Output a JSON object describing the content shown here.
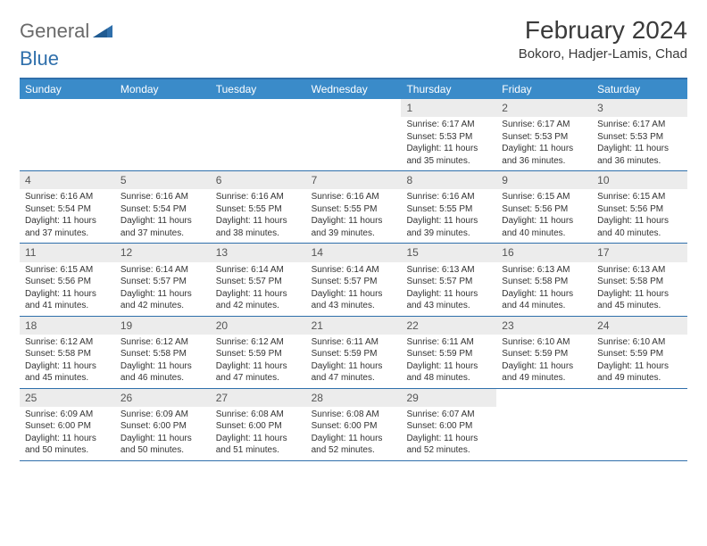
{
  "logo": {
    "part1": "General",
    "part2": "Blue"
  },
  "title": "February 2024",
  "subtitle": "Bokoro, Hadjer-Lamis, Chad",
  "colors": {
    "header_bg": "#3a8bc9",
    "border": "#2f6fab",
    "daynum_bg": "#ececec",
    "text": "#333333",
    "title_text": "#3a3a3a"
  },
  "weekdays": [
    "Sunday",
    "Monday",
    "Tuesday",
    "Wednesday",
    "Thursday",
    "Friday",
    "Saturday"
  ],
  "weeks": [
    [
      {
        "n": "",
        "sr": "",
        "ss": "",
        "dl": ""
      },
      {
        "n": "",
        "sr": "",
        "ss": "",
        "dl": ""
      },
      {
        "n": "",
        "sr": "",
        "ss": "",
        "dl": ""
      },
      {
        "n": "",
        "sr": "",
        "ss": "",
        "dl": ""
      },
      {
        "n": "1",
        "sr": "Sunrise: 6:17 AM",
        "ss": "Sunset: 5:53 PM",
        "dl": "Daylight: 11 hours and 35 minutes."
      },
      {
        "n": "2",
        "sr": "Sunrise: 6:17 AM",
        "ss": "Sunset: 5:53 PM",
        "dl": "Daylight: 11 hours and 36 minutes."
      },
      {
        "n": "3",
        "sr": "Sunrise: 6:17 AM",
        "ss": "Sunset: 5:53 PM",
        "dl": "Daylight: 11 hours and 36 minutes."
      }
    ],
    [
      {
        "n": "4",
        "sr": "Sunrise: 6:16 AM",
        "ss": "Sunset: 5:54 PM",
        "dl": "Daylight: 11 hours and 37 minutes."
      },
      {
        "n": "5",
        "sr": "Sunrise: 6:16 AM",
        "ss": "Sunset: 5:54 PM",
        "dl": "Daylight: 11 hours and 37 minutes."
      },
      {
        "n": "6",
        "sr": "Sunrise: 6:16 AM",
        "ss": "Sunset: 5:55 PM",
        "dl": "Daylight: 11 hours and 38 minutes."
      },
      {
        "n": "7",
        "sr": "Sunrise: 6:16 AM",
        "ss": "Sunset: 5:55 PM",
        "dl": "Daylight: 11 hours and 39 minutes."
      },
      {
        "n": "8",
        "sr": "Sunrise: 6:16 AM",
        "ss": "Sunset: 5:55 PM",
        "dl": "Daylight: 11 hours and 39 minutes."
      },
      {
        "n": "9",
        "sr": "Sunrise: 6:15 AM",
        "ss": "Sunset: 5:56 PM",
        "dl": "Daylight: 11 hours and 40 minutes."
      },
      {
        "n": "10",
        "sr": "Sunrise: 6:15 AM",
        "ss": "Sunset: 5:56 PM",
        "dl": "Daylight: 11 hours and 40 minutes."
      }
    ],
    [
      {
        "n": "11",
        "sr": "Sunrise: 6:15 AM",
        "ss": "Sunset: 5:56 PM",
        "dl": "Daylight: 11 hours and 41 minutes."
      },
      {
        "n": "12",
        "sr": "Sunrise: 6:14 AM",
        "ss": "Sunset: 5:57 PM",
        "dl": "Daylight: 11 hours and 42 minutes."
      },
      {
        "n": "13",
        "sr": "Sunrise: 6:14 AM",
        "ss": "Sunset: 5:57 PM",
        "dl": "Daylight: 11 hours and 42 minutes."
      },
      {
        "n": "14",
        "sr": "Sunrise: 6:14 AM",
        "ss": "Sunset: 5:57 PM",
        "dl": "Daylight: 11 hours and 43 minutes."
      },
      {
        "n": "15",
        "sr": "Sunrise: 6:13 AM",
        "ss": "Sunset: 5:57 PM",
        "dl": "Daylight: 11 hours and 43 minutes."
      },
      {
        "n": "16",
        "sr": "Sunrise: 6:13 AM",
        "ss": "Sunset: 5:58 PM",
        "dl": "Daylight: 11 hours and 44 minutes."
      },
      {
        "n": "17",
        "sr": "Sunrise: 6:13 AM",
        "ss": "Sunset: 5:58 PM",
        "dl": "Daylight: 11 hours and 45 minutes."
      }
    ],
    [
      {
        "n": "18",
        "sr": "Sunrise: 6:12 AM",
        "ss": "Sunset: 5:58 PM",
        "dl": "Daylight: 11 hours and 45 minutes."
      },
      {
        "n": "19",
        "sr": "Sunrise: 6:12 AM",
        "ss": "Sunset: 5:58 PM",
        "dl": "Daylight: 11 hours and 46 minutes."
      },
      {
        "n": "20",
        "sr": "Sunrise: 6:12 AM",
        "ss": "Sunset: 5:59 PM",
        "dl": "Daylight: 11 hours and 47 minutes."
      },
      {
        "n": "21",
        "sr": "Sunrise: 6:11 AM",
        "ss": "Sunset: 5:59 PM",
        "dl": "Daylight: 11 hours and 47 minutes."
      },
      {
        "n": "22",
        "sr": "Sunrise: 6:11 AM",
        "ss": "Sunset: 5:59 PM",
        "dl": "Daylight: 11 hours and 48 minutes."
      },
      {
        "n": "23",
        "sr": "Sunrise: 6:10 AM",
        "ss": "Sunset: 5:59 PM",
        "dl": "Daylight: 11 hours and 49 minutes."
      },
      {
        "n": "24",
        "sr": "Sunrise: 6:10 AM",
        "ss": "Sunset: 5:59 PM",
        "dl": "Daylight: 11 hours and 49 minutes."
      }
    ],
    [
      {
        "n": "25",
        "sr": "Sunrise: 6:09 AM",
        "ss": "Sunset: 6:00 PM",
        "dl": "Daylight: 11 hours and 50 minutes."
      },
      {
        "n": "26",
        "sr": "Sunrise: 6:09 AM",
        "ss": "Sunset: 6:00 PM",
        "dl": "Daylight: 11 hours and 50 minutes."
      },
      {
        "n": "27",
        "sr": "Sunrise: 6:08 AM",
        "ss": "Sunset: 6:00 PM",
        "dl": "Daylight: 11 hours and 51 minutes."
      },
      {
        "n": "28",
        "sr": "Sunrise: 6:08 AM",
        "ss": "Sunset: 6:00 PM",
        "dl": "Daylight: 11 hours and 52 minutes."
      },
      {
        "n": "29",
        "sr": "Sunrise: 6:07 AM",
        "ss": "Sunset: 6:00 PM",
        "dl": "Daylight: 11 hours and 52 minutes."
      },
      {
        "n": "",
        "sr": "",
        "ss": "",
        "dl": ""
      },
      {
        "n": "",
        "sr": "",
        "ss": "",
        "dl": ""
      }
    ]
  ]
}
